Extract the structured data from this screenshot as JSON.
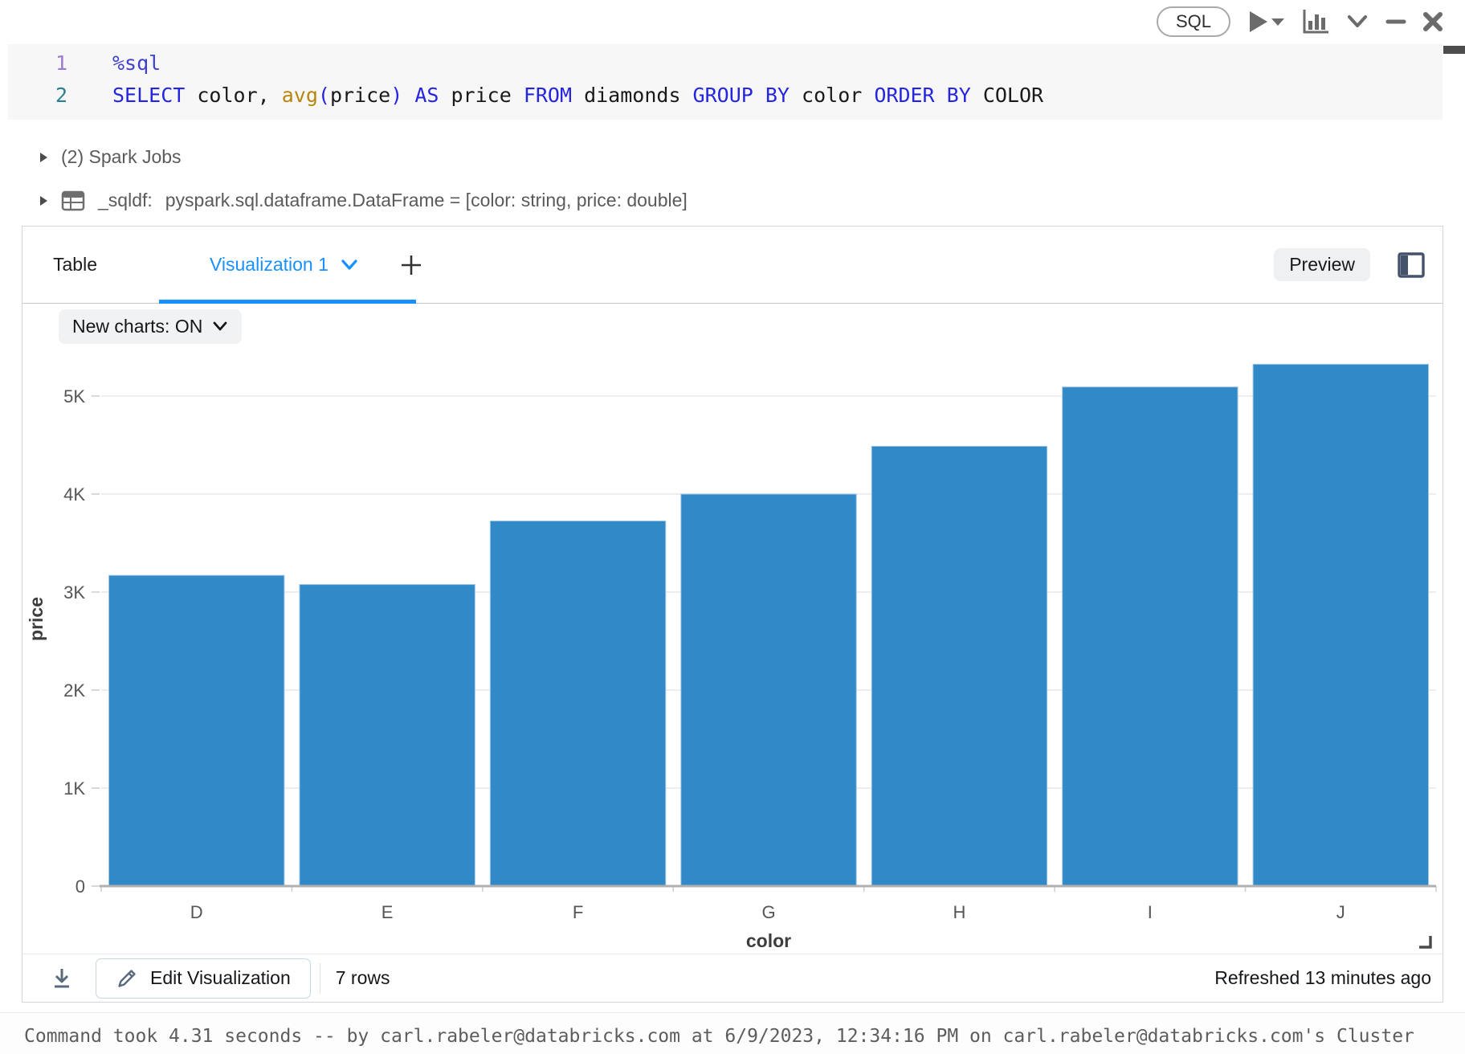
{
  "cell_toolbar": {
    "language_badge": "SQL",
    "icons": [
      "run-icon",
      "run-options-caret-icon",
      "chart-icon",
      "chevron-down-icon",
      "minimize-icon",
      "close-icon"
    ]
  },
  "code": {
    "lines": [
      {
        "num": "1",
        "num_class": "num-purple",
        "tokens": [
          {
            "text": "%sql",
            "type": "magic"
          }
        ]
      },
      {
        "num": "2",
        "num_class": "num-teal",
        "tokens": [
          {
            "text": "SELECT",
            "type": "kw"
          },
          {
            "text": " color, ",
            "type": "plain"
          },
          {
            "text": "avg",
            "type": "fn"
          },
          {
            "text": "(",
            "type": "paren"
          },
          {
            "text": "price",
            "type": "plain"
          },
          {
            "text": ")",
            "type": "paren"
          },
          {
            "text": " ",
            "type": "plain"
          },
          {
            "text": "AS",
            "type": "kw"
          },
          {
            "text": " price ",
            "type": "plain"
          },
          {
            "text": "FROM",
            "type": "kw"
          },
          {
            "text": " diamonds ",
            "type": "plain"
          },
          {
            "text": "GROUP",
            "type": "kw"
          },
          {
            "text": " ",
            "type": "plain"
          },
          {
            "text": "BY",
            "type": "kw"
          },
          {
            "text": " color ",
            "type": "plain"
          },
          {
            "text": "ORDER",
            "type": "kw"
          },
          {
            "text": " ",
            "type": "plain"
          },
          {
            "text": "BY",
            "type": "kw"
          },
          {
            "text": " COLOR",
            "type": "plain"
          }
        ]
      }
    ]
  },
  "execution": {
    "spark_jobs": "(2) Spark Jobs",
    "sqldf_name": "_sqldf:",
    "sqldf_type": "pyspark.sql.dataframe.DataFrame = [color: string, price: double]"
  },
  "results_panel": {
    "tabs": {
      "table": "Table",
      "visualization": "Visualization 1"
    },
    "preview_button": "Preview",
    "new_charts_toggle": "New charts: ON",
    "footer": {
      "edit_visualization": "Edit Visualization",
      "row_count": "7 rows",
      "refreshed": "Refreshed 13 minutes ago"
    }
  },
  "chart_data": {
    "type": "bar",
    "categories": [
      "D",
      "E",
      "F",
      "G",
      "H",
      "I",
      "J"
    ],
    "values": [
      3170,
      3077,
      3725,
      3999,
      4487,
      5092,
      5324
    ],
    "title": "",
    "xlabel": "color",
    "ylabel": "price",
    "yticks": [
      0,
      1000,
      2000,
      3000,
      4000,
      5000
    ],
    "ytick_labels": [
      "0",
      "1K",
      "2K",
      "3K",
      "4K",
      "5K"
    ],
    "ylim": [
      0,
      5450
    ],
    "grid": true,
    "legend": false,
    "bar_color": "#3289c8",
    "bar_edge_color": "#a3c9e5",
    "grid_color": "#ededed",
    "axis_color": "#b0b0b0"
  },
  "status_bar": {
    "message": "Command took 4.31 seconds -- by carl.rabeler@databricks.com at 6/9/2023, 12:34:16 PM on carl.rabeler@databricks.com's Cluster"
  },
  "colors": {
    "accent_blue": "#1890ff",
    "bar_blue": "#3289c8"
  }
}
